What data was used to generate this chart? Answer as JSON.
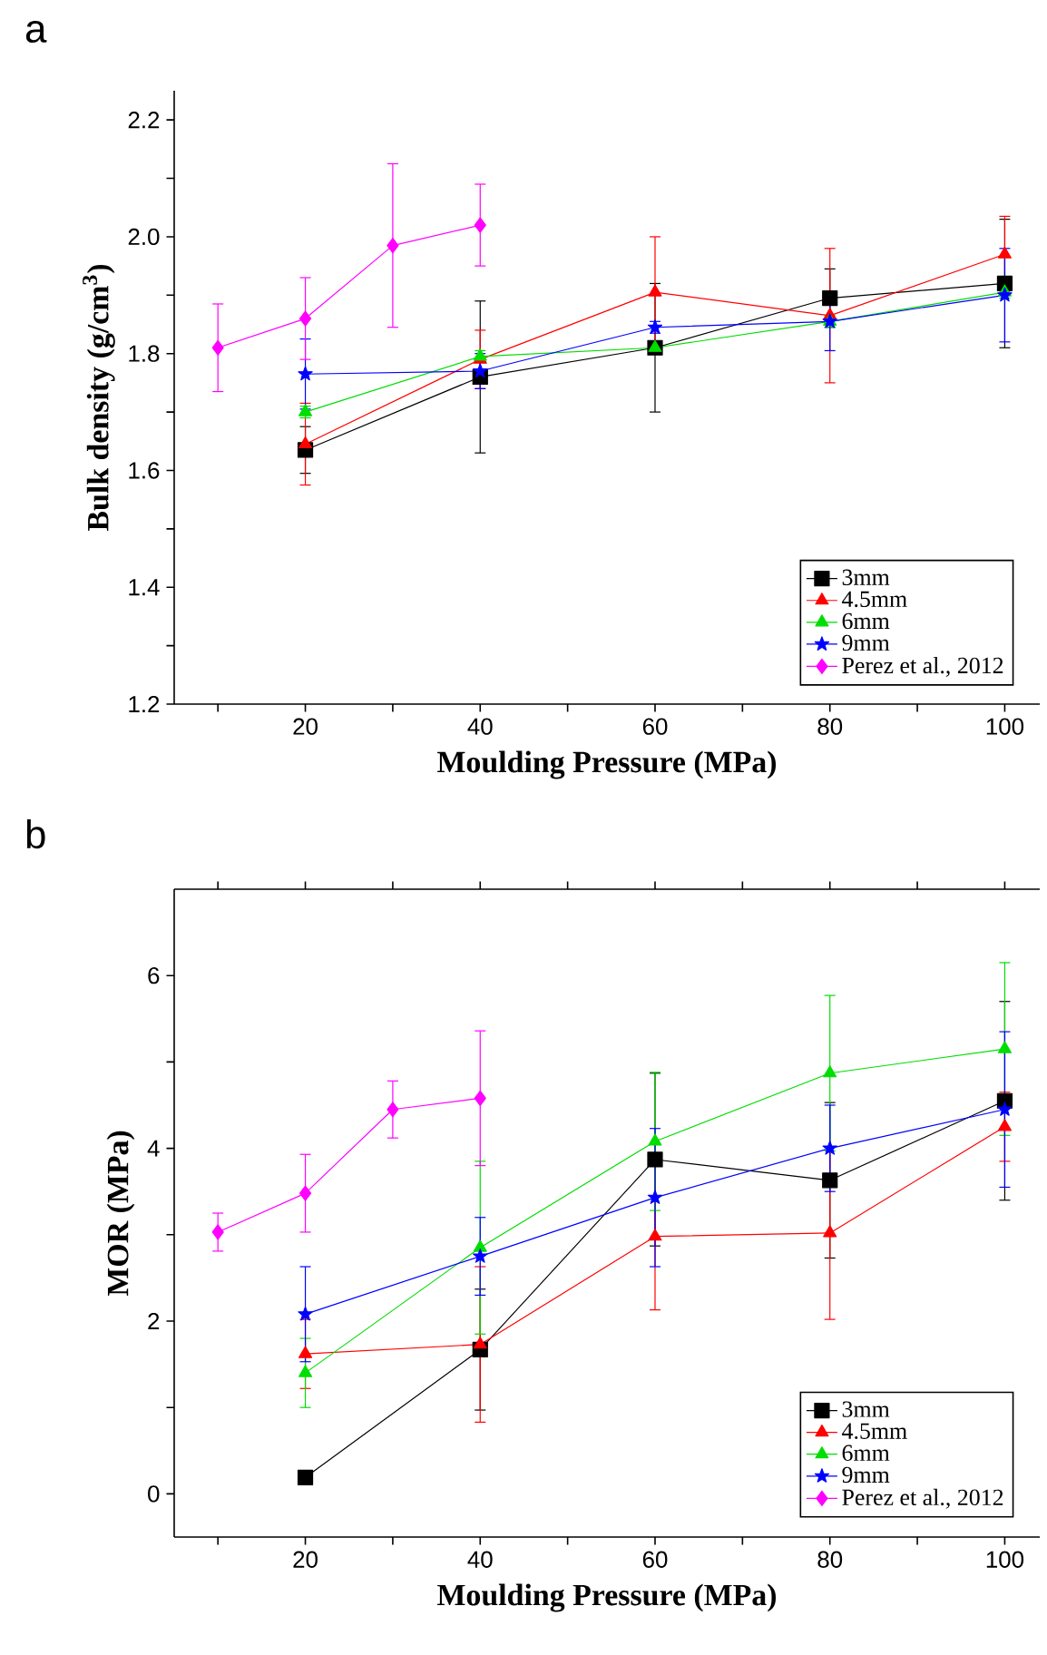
{
  "chart_data": [
    {
      "type": "line",
      "title": "a",
      "xlabel": "Moulding Pressure (MPa)",
      "ylabel": "Bulk density (g/cm$^{3}$)",
      "x": [
        20,
        40,
        60,
        80,
        100
      ],
      "xlim": [
        5,
        104
      ],
      "ylim": [
        1.2,
        2.25
      ],
      "xticks": [
        {
          "value": 10,
          "label": null
        },
        20,
        {
          "value": 30,
          "label": null
        },
        40,
        {
          "value": 50,
          "label": null
        },
        60,
        {
          "value": 70,
          "label": null
        },
        80,
        {
          "value": 90,
          "label": null
        },
        100
      ],
      "yticks": [
        1.2,
        {
          "value": 1.3,
          "label": null
        },
        1.4,
        {
          "value": 1.5,
          "label": null
        },
        1.6,
        {
          "value": 1.7,
          "label": null
        },
        1.8,
        {
          "value": 1.9,
          "label": null
        },
        {
          "value": 2.0,
          "label": "2.0"
        },
        {
          "value": 2.1,
          "label": null
        },
        2.2
      ],
      "legend": "bottom right",
      "series": [
        {
          "name": "3mm",
          "color": "#000000",
          "marker": "square",
          "values": [
            1.635,
            1.76,
            1.81,
            1.895,
            1.92
          ],
          "errors": [
            0.04,
            0.13,
            0.11,
            0.05,
            0.11
          ]
        },
        {
          "name": "4.5mm",
          "color": "#ff0000",
          "marker": "triangle",
          "values": [
            1.645,
            1.79,
            1.905,
            1.865,
            1.97
          ],
          "errors": [
            0.07,
            0.05,
            0.095,
            0.115,
            0.065
          ]
        },
        {
          "name": "6mm",
          "color": "#00dd00",
          "marker": "triangle",
          "values": [
            1.7,
            1.795,
            1.81,
            1.855,
            1.905
          ],
          "errors": [
            0.01,
            0.01,
            0.01,
            0.01,
            0.01
          ]
        },
        {
          "name": "9mm",
          "color": "#0000ff",
          "marker": "star",
          "values": [
            1.765,
            1.77,
            1.845,
            1.855,
            1.9
          ],
          "errors": [
            0.06,
            0.03,
            0.01,
            0.05,
            0.08
          ]
        },
        {
          "name": "Perez et al., 2012",
          "color": "#ff00ff",
          "marker": "diamond",
          "x": [
            10,
            20,
            30,
            40
          ],
          "values": [
            1.81,
            1.86,
            1.985,
            2.02
          ],
          "errors": [
            0.075,
            0.07,
            0.14,
            0.07
          ]
        }
      ]
    },
    {
      "type": "line",
      "title": "b",
      "xlabel": "Moulding Pressure (MPa)",
      "ylabel": "MOR (MPa)",
      "x": [
        20,
        40,
        60,
        80,
        100
      ],
      "xlim": [
        5,
        104
      ],
      "ylim": [
        -0.5,
        7
      ],
      "xticks": [
        {
          "value": 10,
          "label": null
        },
        20,
        {
          "value": 30,
          "label": null
        },
        40,
        {
          "value": 50,
          "label": null
        },
        60,
        {
          "value": 70,
          "label": null
        },
        80,
        {
          "value": 90,
          "label": null
        },
        100
      ],
      "yticks": [
        0,
        {
          "value": 1,
          "label": null
        },
        2,
        {
          "value": 3,
          "label": null
        },
        4,
        {
          "value": 5,
          "label": null
        },
        6
      ],
      "legend": "bottom right",
      "series": [
        {
          "name": "3mm",
          "color": "#000000",
          "marker": "square",
          "values": [
            0.19,
            1.67,
            3.87,
            3.63,
            4.55
          ],
          "errors": [
            null,
            0.7,
            1.0,
            0.9,
            1.15
          ]
        },
        {
          "name": "4.5mm",
          "color": "#ff0000",
          "marker": "triangle",
          "values": [
            1.62,
            1.73,
            2.98,
            3.02,
            4.25
          ],
          "errors": [
            0.4,
            0.9,
            0.85,
            1.0,
            0.4
          ]
        },
        {
          "name": "6mm",
          "color": "#00dd00",
          "marker": "triangle",
          "values": [
            1.4,
            2.85,
            4.08,
            4.87,
            5.15
          ],
          "errors": [
            0.4,
            1.0,
            0.8,
            0.9,
            1.0
          ]
        },
        {
          "name": "9mm",
          "color": "#0000ff",
          "marker": "star",
          "values": [
            2.08,
            2.75,
            3.43,
            4.0,
            4.45
          ],
          "errors": [
            0.55,
            0.45,
            0.8,
            0.5,
            0.9
          ]
        },
        {
          "name": "Perez et al., 2012",
          "color": "#ff00ff",
          "marker": "diamond",
          "x": [
            10,
            20,
            30,
            40
          ],
          "values": [
            3.03,
            3.48,
            4.45,
            4.58
          ],
          "errors": [
            0.22,
            0.45,
            0.33,
            0.78
          ]
        }
      ]
    }
  ]
}
